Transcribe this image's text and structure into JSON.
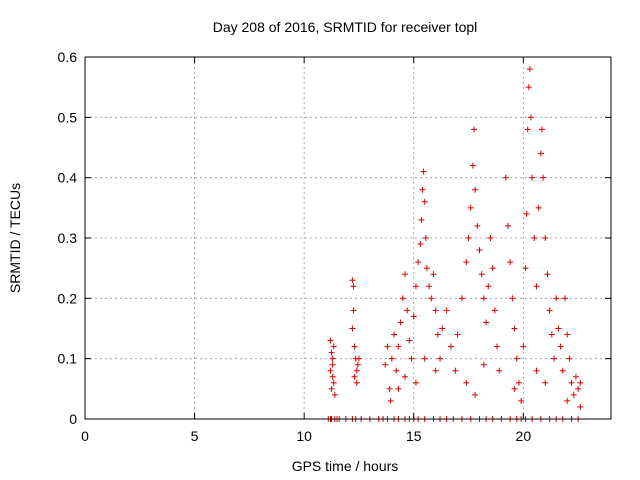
{
  "chart_data": {
    "type": "scatter",
    "title": "Day 208 of 2016, SRMTID for receiver topl",
    "xlabel": "GPS time / hours",
    "ylabel": "SRMTID / TECUs",
    "xlim": [
      0,
      24
    ],
    "ylim": [
      0,
      0.6
    ],
    "x_ticks": [
      0,
      5,
      10,
      15,
      20
    ],
    "y_ticks": [
      0,
      0.1,
      0.2,
      0.3,
      0.4,
      0.5,
      0.6
    ],
    "x_tick_labels": [
      "0",
      "5",
      "10",
      "15",
      "20"
    ],
    "y_tick_labels": [
      "0",
      "0.1",
      "0.2",
      "0.3",
      "0.4",
      "0.5",
      "0.6"
    ],
    "grid": true,
    "marker": "+",
    "marker_color": "#dd0000",
    "series": [
      {
        "name": "SRMTID",
        "points": [
          [
            11.1,
            0.0
          ],
          [
            11.2,
            0.0
          ],
          [
            11.25,
            0.0
          ],
          [
            11.4,
            0.0
          ],
          [
            11.5,
            0.0
          ],
          [
            11.6,
            0.0
          ],
          [
            11.9,
            0.0
          ],
          [
            12.2,
            0.0
          ],
          [
            12.35,
            0.0
          ],
          [
            12.6,
            0.0
          ],
          [
            13.0,
            0.0
          ],
          [
            13.4,
            0.0
          ],
          [
            13.6,
            0.0
          ],
          [
            13.8,
            0.0
          ],
          [
            14.1,
            0.0
          ],
          [
            14.3,
            0.0
          ],
          [
            14.6,
            0.0
          ],
          [
            14.8,
            0.0
          ],
          [
            15.0,
            0.0
          ],
          [
            15.2,
            0.0
          ],
          [
            15.5,
            0.0
          ],
          [
            15.9,
            0.0
          ],
          [
            16.2,
            0.0
          ],
          [
            16.5,
            0.0
          ],
          [
            16.8,
            0.0
          ],
          [
            17.2,
            0.0
          ],
          [
            17.6,
            0.0
          ],
          [
            18.0,
            0.0
          ],
          [
            18.3,
            0.0
          ],
          [
            18.6,
            0.0
          ],
          [
            19.0,
            0.0
          ],
          [
            19.4,
            0.0
          ],
          [
            19.7,
            0.0
          ],
          [
            19.9,
            0.0
          ],
          [
            20.1,
            0.0
          ],
          [
            20.4,
            0.0
          ],
          [
            20.8,
            0.0
          ],
          [
            21.2,
            0.0
          ],
          [
            21.5,
            0.0
          ],
          [
            21.8,
            0.0
          ],
          [
            22.2,
            0.0
          ],
          [
            22.5,
            0.0
          ],
          [
            11.2,
            0.13
          ],
          [
            11.25,
            0.11
          ],
          [
            11.3,
            0.1
          ],
          [
            11.35,
            0.12
          ],
          [
            11.2,
            0.08
          ],
          [
            11.3,
            0.07
          ],
          [
            11.35,
            0.06
          ],
          [
            11.4,
            0.04
          ],
          [
            11.3,
            0.09
          ],
          [
            11.25,
            0.05
          ],
          [
            12.2,
            0.23
          ],
          [
            12.25,
            0.22
          ],
          [
            12.25,
            0.18
          ],
          [
            12.2,
            0.15
          ],
          [
            12.3,
            0.12
          ],
          [
            12.35,
            0.1
          ],
          [
            12.4,
            0.08
          ],
          [
            12.45,
            0.09
          ],
          [
            12.5,
            0.1
          ],
          [
            12.4,
            0.06
          ],
          [
            12.3,
            0.07
          ],
          [
            13.7,
            0.09
          ],
          [
            13.8,
            0.12
          ],
          [
            13.9,
            0.05
          ],
          [
            13.95,
            0.03
          ],
          [
            14.0,
            0.1
          ],
          [
            14.1,
            0.14
          ],
          [
            14.2,
            0.08
          ],
          [
            14.3,
            0.12
          ],
          [
            14.4,
            0.16
          ],
          [
            14.5,
            0.2
          ],
          [
            14.6,
            0.24
          ],
          [
            14.7,
            0.18
          ],
          [
            14.8,
            0.13
          ],
          [
            14.9,
            0.1
          ],
          [
            15.0,
            0.17
          ],
          [
            15.1,
            0.22
          ],
          [
            15.2,
            0.26
          ],
          [
            15.3,
            0.29
          ],
          [
            15.35,
            0.33
          ],
          [
            15.4,
            0.38
          ],
          [
            15.45,
            0.41
          ],
          [
            15.5,
            0.36
          ],
          [
            15.55,
            0.3
          ],
          [
            15.6,
            0.25
          ],
          [
            15.7,
            0.22
          ],
          [
            15.8,
            0.2
          ],
          [
            15.9,
            0.24
          ],
          [
            16.0,
            0.18
          ],
          [
            16.1,
            0.14
          ],
          [
            16.2,
            0.1
          ],
          [
            14.6,
            0.07
          ],
          [
            14.3,
            0.05
          ],
          [
            15.1,
            0.06
          ],
          [
            15.5,
            0.1
          ],
          [
            16.0,
            0.08
          ],
          [
            16.3,
            0.15
          ],
          [
            16.5,
            0.18
          ],
          [
            16.7,
            0.12
          ],
          [
            16.9,
            0.08
          ],
          [
            17.0,
            0.14
          ],
          [
            17.2,
            0.2
          ],
          [
            17.4,
            0.26
          ],
          [
            17.5,
            0.3
          ],
          [
            17.6,
            0.35
          ],
          [
            17.7,
            0.42
          ],
          [
            17.75,
            0.48
          ],
          [
            17.8,
            0.38
          ],
          [
            17.9,
            0.32
          ],
          [
            18.0,
            0.28
          ],
          [
            18.1,
            0.24
          ],
          [
            18.2,
            0.2
          ],
          [
            18.3,
            0.16
          ],
          [
            18.4,
            0.22
          ],
          [
            18.5,
            0.3
          ],
          [
            18.6,
            0.25
          ],
          [
            18.7,
            0.18
          ],
          [
            18.8,
            0.12
          ],
          [
            18.9,
            0.08
          ],
          [
            17.4,
            0.06
          ],
          [
            17.8,
            0.04
          ],
          [
            18.2,
            0.09
          ],
          [
            19.2,
            0.4
          ],
          [
            19.3,
            0.32
          ],
          [
            19.4,
            0.26
          ],
          [
            19.5,
            0.2
          ],
          [
            19.6,
            0.15
          ],
          [
            19.7,
            0.1
          ],
          [
            19.8,
            0.06
          ],
          [
            19.9,
            0.03
          ],
          [
            20.0,
            0.12
          ],
          [
            20.1,
            0.25
          ],
          [
            20.15,
            0.34
          ],
          [
            20.2,
            0.48
          ],
          [
            20.25,
            0.55
          ],
          [
            20.3,
            0.58
          ],
          [
            20.35,
            0.5
          ],
          [
            20.4,
            0.4
          ],
          [
            20.5,
            0.3
          ],
          [
            20.6,
            0.22
          ],
          [
            20.7,
            0.35
          ],
          [
            20.8,
            0.44
          ],
          [
            20.85,
            0.48
          ],
          [
            20.9,
            0.4
          ],
          [
            21.0,
            0.3
          ],
          [
            21.1,
            0.24
          ],
          [
            21.2,
            0.18
          ],
          [
            21.3,
            0.14
          ],
          [
            21.4,
            0.1
          ],
          [
            21.5,
            0.2
          ],
          [
            21.6,
            0.15
          ],
          [
            21.7,
            0.12
          ],
          [
            21.8,
            0.08
          ],
          [
            21.9,
            0.2
          ],
          [
            22.0,
            0.14
          ],
          [
            22.1,
            0.1
          ],
          [
            22.2,
            0.06
          ],
          [
            22.3,
            0.04
          ],
          [
            22.4,
            0.07
          ],
          [
            22.5,
            0.05
          ],
          [
            22.6,
            0.02
          ],
          [
            22.6,
            0.06
          ],
          [
            19.6,
            0.05
          ],
          [
            20.6,
            0.08
          ],
          [
            21.0,
            0.06
          ],
          [
            22.0,
            0.03
          ]
        ]
      }
    ]
  }
}
